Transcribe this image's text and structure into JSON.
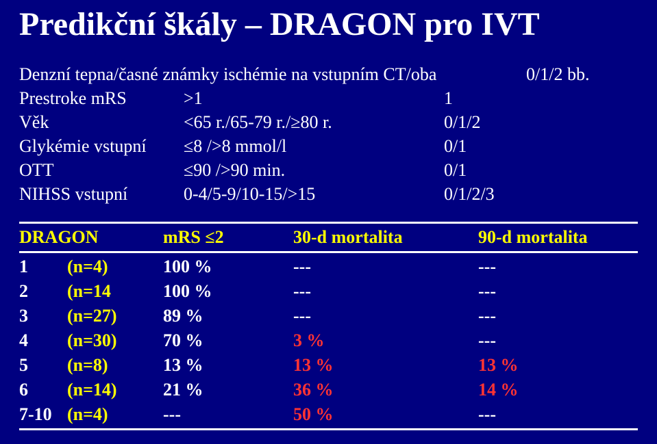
{
  "title": "Predikční škály – DRAGON pro IVT",
  "colors": {
    "background": "#000080",
    "text": "#ffffff",
    "highlight": "#ffff00",
    "bad": "#ff3333",
    "rule": "#ffffff"
  },
  "criteria": [
    {
      "label": "Denzní tepna/časné známky ischémie na vstupním CT/oba",
      "value": "",
      "score": "0/1/2 bb."
    },
    {
      "label": "Prestroke mRS",
      "value": ">1",
      "score": "1"
    },
    {
      "label": "Věk",
      "value": "<65 r./65-79 r./≥80 r.",
      "score": "0/1/2"
    },
    {
      "label": "Glykémie vstupní",
      "value": "≤8 />8 mmol/l",
      "score": "0/1"
    },
    {
      "label": "OTT",
      "value": "≤90 />90 min.",
      "score": "0/1"
    },
    {
      "label": "NIHSS vstupní",
      "value": "0-4/5-9/10-15/>15",
      "score": "0/1/2/3"
    }
  ],
  "table": {
    "headers": [
      "DRAGON",
      "",
      "mRS ≤2",
      "30-d mortalita",
      "90-d mortalita"
    ],
    "rows": [
      {
        "score": "1",
        "n": "(n=4)",
        "mrs": "100 %",
        "m30": "---",
        "m90": "---",
        "m30_red": false,
        "m90_red": false
      },
      {
        "score": "2",
        "n": "(n=14",
        "mrs": "100 %",
        "m30": "---",
        "m90": "---",
        "m30_red": false,
        "m90_red": false
      },
      {
        "score": "3",
        "n": "(n=27)",
        "mrs": "89 %",
        "m30": "---",
        "m90": "---",
        "m30_red": false,
        "m90_red": false
      },
      {
        "score": "4",
        "n": "(n=30)",
        "mrs": "70 %",
        "m30": "3 %",
        "m90": "---",
        "m30_red": true,
        "m90_red": false
      },
      {
        "score": "5",
        "n": "(n=8)",
        "mrs": "13 %",
        "m30": "13 %",
        "m90": "13 %",
        "m30_red": true,
        "m90_red": true
      },
      {
        "score": "6",
        "n": "(n=14)",
        "mrs": "21 %",
        "m30": "36 %",
        "m90": "14 %",
        "m30_red": true,
        "m90_red": true
      },
      {
        "score": "7-10",
        "n": "(n=4)",
        "mrs": "---",
        "m30": "50 %",
        "m90": "---",
        "m30_red": true,
        "m90_red": false
      }
    ]
  }
}
